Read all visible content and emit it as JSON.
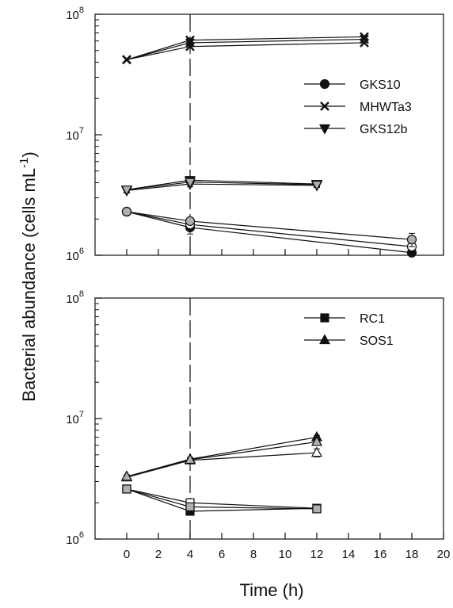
{
  "chart_data": {
    "type": "scatter",
    "xlabel": "Time (h)",
    "ylabel_prefix": "Bacterial abundance (cells mL",
    "ylabel_sup": "-1",
    "ylabel_suffix": ")",
    "x_ticks": [
      0,
      2,
      4,
      6,
      8,
      10,
      12,
      14,
      16,
      18,
      20
    ],
    "xlim": [
      -2,
      20
    ],
    "y_scale": "log",
    "ylim": [
      1000000,
      100000000
    ],
    "y_ticks": [
      {
        "value": 1000000,
        "base": "10",
        "exp": "6"
      },
      {
        "value": 10000000,
        "base": "10",
        "exp": "7"
      },
      {
        "value": 100000000,
        "base": "10",
        "exp": "8"
      }
    ],
    "vertical_line_x": 4,
    "panels": [
      {
        "legend_position": "top-right",
        "legend": [
          {
            "name": "GKS10",
            "marker": "circle"
          },
          {
            "name": "MHWTa3",
            "marker": "cross"
          },
          {
            "name": "GKS12b",
            "marker": "triangle-down"
          }
        ],
        "series": [
          {
            "name": "GKS10",
            "marker": "circle",
            "fill": "#111111",
            "x": [
              0,
              4,
              18
            ],
            "y": [
              2300000,
              1700000,
              1050000
            ],
            "err": [
              150000,
              200000,
              60000
            ]
          },
          {
            "name": "GKS10",
            "marker": "circle",
            "fill": "#ffffff",
            "x": [
              0,
              4,
              18
            ],
            "y": [
              2300000,
              1800000,
              1180000
            ],
            "err": [
              120000,
              150000,
              80000
            ]
          },
          {
            "name": "GKS10",
            "marker": "circle",
            "fill": "#b0b0b0",
            "x": [
              0,
              4,
              18
            ],
            "y": [
              2300000,
              1920000,
              1350000
            ],
            "err": [
              100000,
              120000,
              170000
            ]
          },
          {
            "name": "MHWTa3",
            "marker": "cross",
            "fill": "#111111",
            "x": [
              0,
              4,
              15
            ],
            "y": [
              42000000,
              61000000,
              65000000
            ],
            "err": [
              0,
              0,
              0
            ]
          },
          {
            "name": "MHWTa3",
            "marker": "cross",
            "fill": "#111111",
            "x": [
              0,
              4,
              15
            ],
            "y": [
              42000000,
              58000000,
              62000000
            ],
            "err": [
              0,
              0,
              0
            ]
          },
          {
            "name": "MHWTa3",
            "marker": "cross",
            "fill": "#111111",
            "x": [
              0,
              4,
              15
            ],
            "y": [
              42000000,
              54000000,
              58000000
            ],
            "err": [
              0,
              0,
              0
            ]
          },
          {
            "name": "GKS12b",
            "marker": "triangle-down",
            "fill": "#111111",
            "x": [
              0,
              4,
              12
            ],
            "y": [
              3500000,
              4200000,
              3900000
            ],
            "err": [
              200000,
              250000,
              200000
            ]
          },
          {
            "name": "GKS12b",
            "marker": "triangle-down",
            "fill": "#ffffff",
            "x": [
              0,
              4,
              12
            ],
            "y": [
              3450000,
              3900000,
              3800000
            ],
            "err": [
              150000,
              200000,
              150000
            ]
          },
          {
            "name": "GKS12b",
            "marker": "triangle-down",
            "fill": "#b0b0b0",
            "x": [
              0,
              4,
              12
            ],
            "y": [
              3500000,
              4050000,
              3850000
            ],
            "err": [
              150000,
              200000,
              150000
            ]
          }
        ]
      },
      {
        "legend_position": "top-right",
        "legend": [
          {
            "name": "RC1",
            "marker": "square"
          },
          {
            "name": "SOS1",
            "marker": "triangle-up"
          }
        ],
        "series": [
          {
            "name": "RC1",
            "marker": "square",
            "fill": "#111111",
            "x": [
              0,
              4,
              12
            ],
            "y": [
              2600000,
              1700000,
              1800000
            ],
            "err": [
              80000,
              100000,
              80000
            ]
          },
          {
            "name": "RC1",
            "marker": "square",
            "fill": "#ffffff",
            "x": [
              0,
              4,
              12
            ],
            "y": [
              2600000,
              2000000,
              1800000
            ],
            "err": [
              80000,
              100000,
              80000
            ]
          },
          {
            "name": "RC1",
            "marker": "square",
            "fill": "#b0b0b0",
            "x": [
              0,
              4,
              12
            ],
            "y": [
              2600000,
              1850000,
              1780000
            ],
            "err": [
              80000,
              100000,
              80000
            ]
          },
          {
            "name": "SOS1",
            "marker": "triangle-up",
            "fill": "#111111",
            "x": [
              0,
              4,
              12
            ],
            "y": [
              3300000,
              4600000,
              7000000
            ],
            "err": [
              100000,
              150000,
              250000
            ]
          },
          {
            "name": "SOS1",
            "marker": "triangle-up",
            "fill": "#ffffff",
            "x": [
              0,
              4,
              12
            ],
            "y": [
              3250000,
              4500000,
              5200000
            ],
            "err": [
              100000,
              200000,
              400000
            ]
          },
          {
            "name": "SOS1",
            "marker": "triangle-up",
            "fill": "#b0b0b0",
            "x": [
              0,
              4,
              12
            ],
            "y": [
              3300000,
              4550000,
              6400000
            ],
            "err": [
              100000,
              150000,
              250000
            ]
          }
        ]
      }
    ]
  }
}
